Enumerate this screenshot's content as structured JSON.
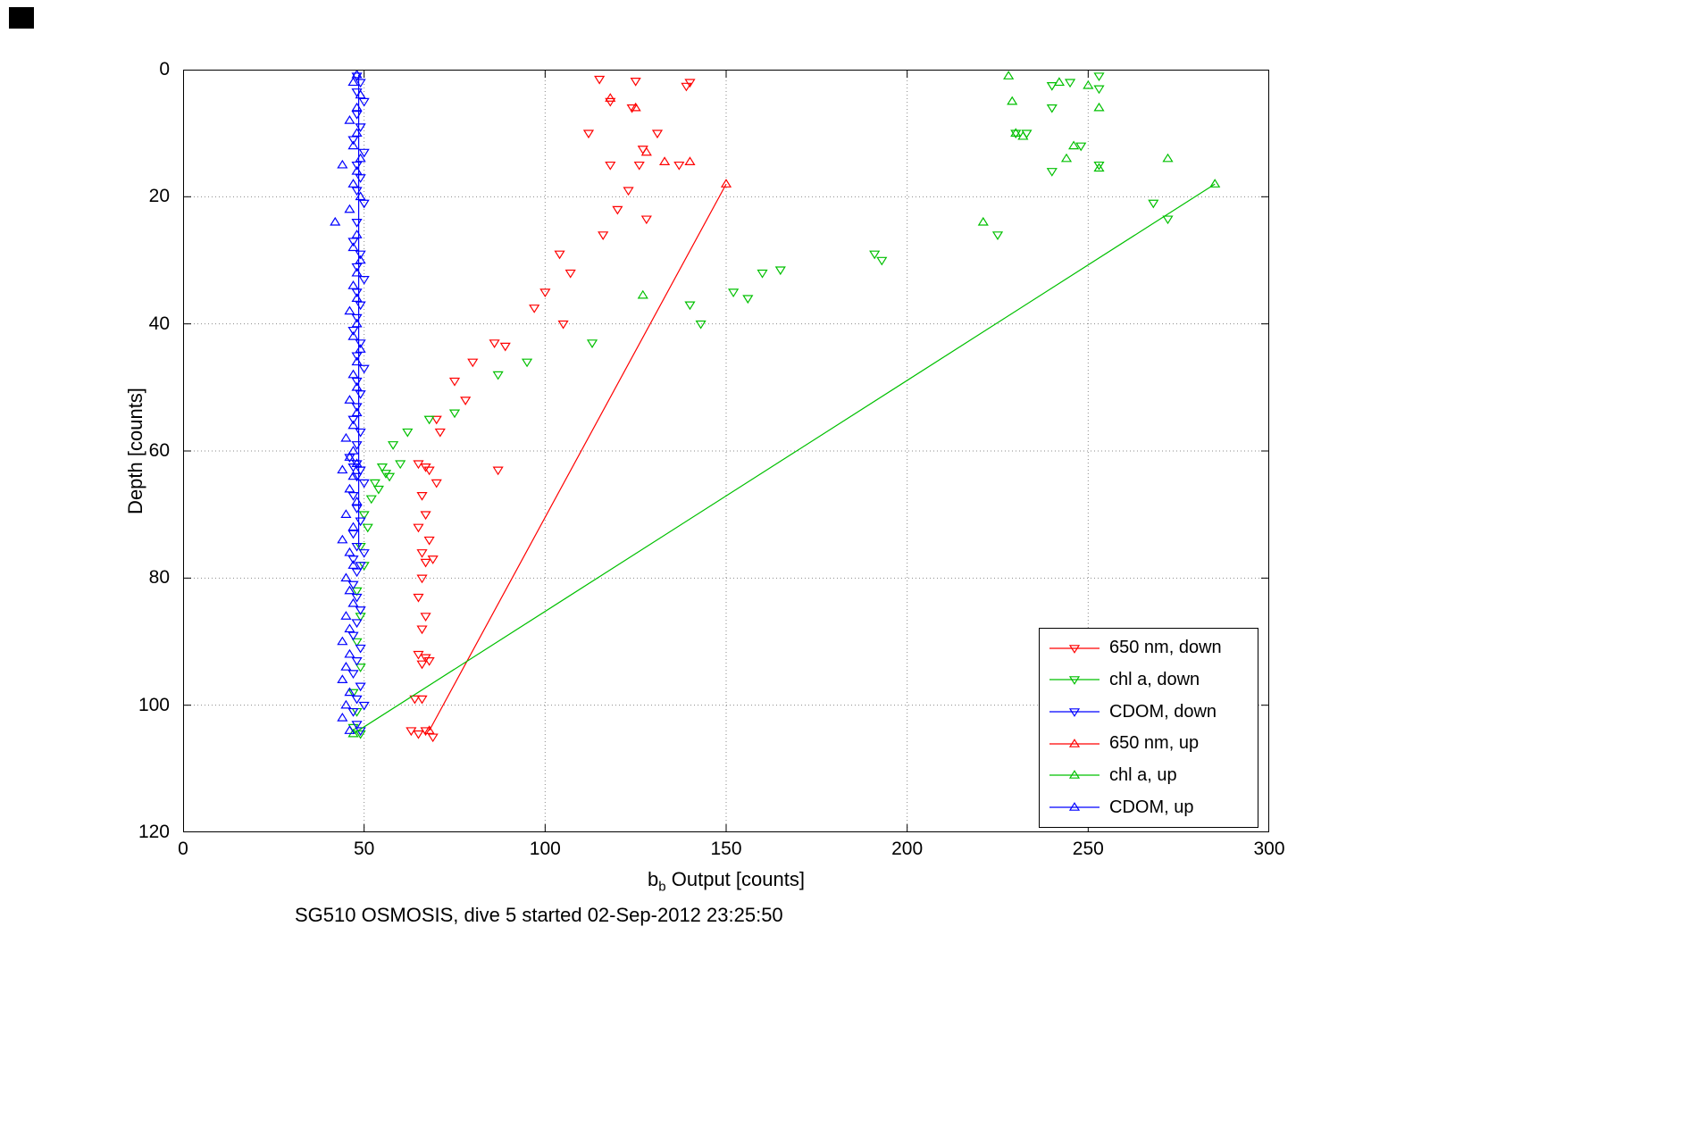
{
  "figure": {
    "title": "SG510 OSMOSIS, dive 5 started 02-Sep-2012 23:25:50"
  },
  "axes": {
    "x": {
      "label_prefix": "b",
      "label_sub": "b",
      "label_rest": " Output [counts]",
      "ticks": [
        0,
        50,
        100,
        150,
        200,
        250,
        300
      ],
      "range": [
        0,
        300
      ]
    },
    "y": {
      "label": "Depth [counts]",
      "ticks": [
        0,
        20,
        40,
        60,
        80,
        100,
        120
      ],
      "range": [
        0,
        120
      ]
    }
  },
  "colors": {
    "red": "#ff0000",
    "green": "#00c000",
    "blue": "#0000ff",
    "grid": "#8a8a8a",
    "axis": "#000000"
  },
  "chart_data": {
    "type": "scatter",
    "title": "SG510 OSMOSIS, dive 5 started 02-Sep-2012 23:25:50",
    "xlabel": "b_b Output [counts]",
    "ylabel": "Depth [counts]",
    "xlim": [
      0,
      300
    ],
    "ylim": [
      0,
      120
    ],
    "y_axis_inverted": true,
    "grid": true,
    "legend_position": "lower right",
    "series": [
      {
        "id": "650nm-down",
        "label": "650 nm, down",
        "color": "#ff0000",
        "marker": "triangle-down",
        "points": [
          [
            115,
            1.5
          ],
          [
            125,
            1.8
          ],
          [
            140,
            2
          ],
          [
            139,
            2.6
          ],
          [
            118,
            5
          ],
          [
            124,
            6
          ],
          [
            112,
            10
          ],
          [
            131,
            10
          ],
          [
            127,
            12.5
          ],
          [
            118,
            15
          ],
          [
            126,
            15
          ],
          [
            137,
            15
          ],
          [
            123,
            19
          ],
          [
            120,
            22
          ],
          [
            128,
            23.5
          ],
          [
            116,
            26
          ],
          [
            104,
            29
          ],
          [
            107,
            32
          ],
          [
            100,
            35
          ],
          [
            97,
            37.5
          ],
          [
            105,
            40
          ],
          [
            86,
            43
          ],
          [
            89,
            43.5
          ],
          [
            80,
            46
          ],
          [
            75,
            49
          ],
          [
            78,
            52
          ],
          [
            70,
            55
          ],
          [
            71,
            57
          ],
          [
            65,
            62
          ],
          [
            67,
            62.5
          ],
          [
            68,
            63
          ],
          [
            87,
            63
          ],
          [
            70,
            65
          ],
          [
            66,
            67
          ],
          [
            67,
            70
          ],
          [
            65,
            72
          ],
          [
            68,
            74
          ],
          [
            66,
            76
          ],
          [
            69,
            77
          ],
          [
            67,
            77.5
          ],
          [
            66,
            80
          ],
          [
            65,
            83
          ],
          [
            67,
            86
          ],
          [
            66,
            88
          ],
          [
            65,
            92
          ],
          [
            67,
            92.5
          ],
          [
            68,
            93
          ],
          [
            66,
            93.5
          ],
          [
            64,
            99
          ],
          [
            66,
            99
          ],
          [
            63,
            104
          ],
          [
            65,
            104.5
          ],
          [
            67,
            104
          ],
          [
            69,
            105
          ]
        ]
      },
      {
        "id": "chla-down",
        "label": "chl a, down",
        "color": "#00c000",
        "marker": "triangle-down",
        "points": [
          [
            253,
            1
          ],
          [
            245,
            2
          ],
          [
            240,
            2.5
          ],
          [
            253,
            3
          ],
          [
            240,
            6
          ],
          [
            230,
            10
          ],
          [
            233,
            10
          ],
          [
            248,
            12
          ],
          [
            240,
            16
          ],
          [
            253,
            15
          ],
          [
            268,
            21
          ],
          [
            272,
            23.5
          ],
          [
            225,
            26
          ],
          [
            191,
            29
          ],
          [
            193,
            30
          ],
          [
            165,
            31.5
          ],
          [
            160,
            32
          ],
          [
            152,
            35
          ],
          [
            156,
            36
          ],
          [
            140,
            37
          ],
          [
            143,
            40
          ],
          [
            113,
            43
          ],
          [
            95,
            46
          ],
          [
            87,
            48
          ],
          [
            75,
            54
          ],
          [
            68,
            55
          ],
          [
            62,
            57
          ],
          [
            58,
            59
          ],
          [
            60,
            62
          ],
          [
            55,
            62.5
          ],
          [
            56,
            63.5
          ],
          [
            57,
            64
          ],
          [
            53,
            65
          ],
          [
            54,
            66
          ],
          [
            52,
            67.5
          ],
          [
            50,
            70
          ],
          [
            51,
            72
          ],
          [
            49,
            75
          ],
          [
            50,
            78
          ],
          [
            48,
            82
          ],
          [
            49,
            86
          ],
          [
            48,
            90
          ],
          [
            49,
            94
          ],
          [
            47,
            98
          ],
          [
            48,
            101
          ],
          [
            47,
            103.5
          ],
          [
            49,
            104.5
          ]
        ]
      },
      {
        "id": "cdom-down",
        "label": "CDOM, down",
        "color": "#0000ff",
        "marker": "triangle-down",
        "line": [
          [
            48.5,
            0.8
          ],
          [
            48.5,
            75
          ]
        ],
        "points": [
          [
            48,
            1
          ],
          [
            49,
            2
          ],
          [
            48,
            3.5
          ],
          [
            50,
            5
          ],
          [
            48,
            7
          ],
          [
            49,
            9
          ],
          [
            47,
            11
          ],
          [
            50,
            13
          ],
          [
            48,
            15
          ],
          [
            49,
            17
          ],
          [
            48,
            19
          ],
          [
            50,
            21
          ],
          [
            48,
            24
          ],
          [
            47,
            27
          ],
          [
            49,
            29
          ],
          [
            48,
            31
          ],
          [
            50,
            33
          ],
          [
            48,
            35
          ],
          [
            49,
            37
          ],
          [
            48,
            39
          ],
          [
            47,
            41
          ],
          [
            49,
            43
          ],
          [
            48,
            45
          ],
          [
            50,
            47
          ],
          [
            48,
            49
          ],
          [
            49,
            51
          ],
          [
            48,
            53
          ],
          [
            47,
            55
          ],
          [
            49,
            57
          ],
          [
            48,
            59
          ],
          [
            46,
            61
          ],
          [
            48,
            62
          ],
          [
            47,
            62.5
          ],
          [
            49,
            63
          ],
          [
            48,
            64
          ],
          [
            50,
            65
          ],
          [
            47,
            67
          ],
          [
            48,
            69
          ],
          [
            49,
            71
          ],
          [
            47,
            73
          ],
          [
            48,
            75
          ],
          [
            50,
            76
          ],
          [
            47,
            77
          ],
          [
            49,
            78
          ],
          [
            48,
            79
          ],
          [
            47,
            81
          ],
          [
            48,
            83
          ],
          [
            49,
            85
          ],
          [
            48,
            87
          ],
          [
            47,
            89
          ],
          [
            49,
            91
          ],
          [
            48,
            93
          ],
          [
            47,
            95
          ],
          [
            49,
            97
          ],
          [
            48,
            99
          ],
          [
            50,
            100
          ],
          [
            47,
            101
          ],
          [
            48,
            103
          ],
          [
            49,
            104
          ]
        ]
      },
      {
        "id": "650nm-up",
        "label": "650 nm, up",
        "color": "#ff0000",
        "marker": "triangle-up",
        "line": [
          [
            150,
            18
          ],
          [
            68,
            104
          ]
        ],
        "points": [
          [
            118,
            4.5
          ],
          [
            125,
            6
          ],
          [
            128,
            13
          ],
          [
            133,
            14.5
          ],
          [
            140,
            14.5
          ],
          [
            150,
            18
          ],
          [
            68,
            104
          ]
        ]
      },
      {
        "id": "chla-up",
        "label": "chl a, up",
        "color": "#00c000",
        "marker": "triangle-up",
        "line": [
          [
            285,
            18
          ],
          [
            47,
            104.5
          ]
        ],
        "points": [
          [
            228,
            1
          ],
          [
            242,
            2
          ],
          [
            250,
            2.5
          ],
          [
            229,
            5
          ],
          [
            253,
            6
          ],
          [
            230,
            10
          ],
          [
            232,
            10.5
          ],
          [
            246,
            12
          ],
          [
            244,
            14
          ],
          [
            272,
            14
          ],
          [
            253,
            15.5
          ],
          [
            285,
            18
          ],
          [
            221,
            24
          ],
          [
            127,
            35.5
          ],
          [
            47,
            104.5
          ]
        ]
      },
      {
        "id": "cdom-up",
        "label": "CDOM, up",
        "color": "#0000ff",
        "marker": "triangle-up",
        "points": [
          [
            48,
            0.8
          ],
          [
            47,
            2
          ],
          [
            49,
            4
          ],
          [
            48,
            6
          ],
          [
            46,
            8
          ],
          [
            48,
            10
          ],
          [
            47,
            12
          ],
          [
            49,
            14
          ],
          [
            44,
            15
          ],
          [
            48,
            16
          ],
          [
            47,
            18
          ],
          [
            49,
            20
          ],
          [
            46,
            22
          ],
          [
            42,
            24
          ],
          [
            48,
            26
          ],
          [
            47,
            28
          ],
          [
            49,
            30
          ],
          [
            48,
            32
          ],
          [
            47,
            34
          ],
          [
            48,
            36
          ],
          [
            46,
            38
          ],
          [
            48,
            40
          ],
          [
            47,
            42
          ],
          [
            49,
            44
          ],
          [
            48,
            46
          ],
          [
            47,
            48
          ],
          [
            48,
            50
          ],
          [
            46,
            52
          ],
          [
            48,
            54
          ],
          [
            47,
            56
          ],
          [
            45,
            58
          ],
          [
            47,
            60
          ],
          [
            46,
            61
          ],
          [
            48,
            62
          ],
          [
            44,
            63
          ],
          [
            47,
            64
          ],
          [
            46,
            66
          ],
          [
            48,
            68
          ],
          [
            45,
            70
          ],
          [
            47,
            72
          ],
          [
            44,
            74
          ],
          [
            46,
            76
          ],
          [
            47,
            78
          ],
          [
            45,
            80
          ],
          [
            46,
            82
          ],
          [
            47,
            84
          ],
          [
            45,
            86
          ],
          [
            46,
            88
          ],
          [
            44,
            90
          ],
          [
            46,
            92
          ],
          [
            45,
            94
          ],
          [
            44,
            96
          ],
          [
            46,
            98
          ],
          [
            45,
            100
          ],
          [
            44,
            102
          ],
          [
            46,
            104
          ]
        ]
      }
    ]
  },
  "legend": {
    "entries": [
      {
        "label": "650 nm, down",
        "color": "#ff0000",
        "marker": "triangle-down"
      },
      {
        "label": "chl a, down",
        "color": "#00c000",
        "marker": "triangle-down"
      },
      {
        "label": "CDOM, down",
        "color": "#0000ff",
        "marker": "triangle-down"
      },
      {
        "label": "650 nm, up",
        "color": "#ff0000",
        "marker": "triangle-up"
      },
      {
        "label": "chl a, up",
        "color": "#00c000",
        "marker": "triangle-up"
      },
      {
        "label": "CDOM, up",
        "color": "#0000ff",
        "marker": "triangle-up"
      }
    ]
  }
}
